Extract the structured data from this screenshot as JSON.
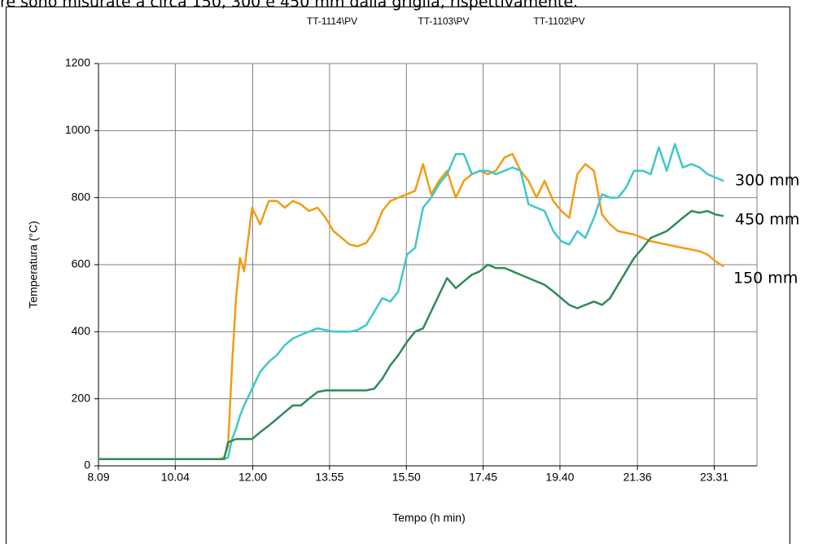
{
  "caption": "re sono misurate a circa 150, 300 e 450 mm dalla griglia, rispettivamente.",
  "chart_data": {
    "type": "line",
    "xlabel": "Tempo (h min)",
    "ylabel": "Temperatura (°C)",
    "x": [
      489,
      671,
      677,
      683,
      689,
      695,
      701,
      707,
      719,
      731,
      744,
      756,
      768,
      780,
      792,
      804,
      817,
      829,
      841,
      853,
      865,
      877,
      890,
      902,
      914,
      926,
      938,
      951,
      963,
      975,
      987,
      999,
      1011,
      1024,
      1036,
      1048,
      1060,
      1072,
      1084,
      1097,
      1109,
      1121,
      1133,
      1145,
      1157,
      1170,
      1182,
      1194,
      1206,
      1218,
      1231,
      1243,
      1255,
      1267,
      1279,
      1291,
      1304,
      1316,
      1328,
      1340,
      1352,
      1364,
      1377,
      1389,
      1401,
      1413,
      1425
    ],
    "xlim": [
      489,
      1475
    ],
    "xticks": [
      {
        "value": 489,
        "label": "8.09"
      },
      {
        "value": 604,
        "label": "10.04"
      },
      {
        "value": 720,
        "label": "12.00"
      },
      {
        "value": 835,
        "label": "13.55"
      },
      {
        "value": 950,
        "label": "15.50"
      },
      {
        "value": 1065,
        "label": "17.45"
      },
      {
        "value": 1180,
        "label": "19.40"
      },
      {
        "value": 1296,
        "label": "21.36"
      },
      {
        "value": 1411,
        "label": "23.31"
      }
    ],
    "ylim": [
      0,
      1200
    ],
    "yticks": [
      0,
      200,
      400,
      600,
      800,
      1000,
      1200
    ],
    "grid": true,
    "series": [
      {
        "name": "TT-1114\\PV",
        "color": "#f59b12",
        "values": [
          20,
          20,
          25,
          60,
          300,
          500,
          620,
          580,
          770,
          720,
          790,
          790,
          770,
          790,
          780,
          760,
          770,
          740,
          700,
          680,
          660,
          655,
          665,
          700,
          760,
          790,
          800,
          810,
          820,
          900,
          810,
          850,
          880,
          800,
          850,
          870,
          880,
          870,
          880,
          920,
          930,
          880,
          850,
          800,
          850,
          790,
          760,
          740,
          870,
          900,
          880,
          750,
          720,
          700,
          695,
          690,
          680,
          670,
          665,
          660,
          655,
          650,
          645,
          640,
          630,
          610,
          595
        ]
      },
      {
        "name": "TT-1103\\PV",
        "color": "#3ec8c8",
        "values": [
          20,
          20,
          20,
          25,
          80,
          110,
          150,
          180,
          230,
          280,
          310,
          330,
          360,
          380,
          390,
          400,
          410,
          405,
          400,
          400,
          400,
          405,
          420,
          460,
          500,
          490,
          520,
          630,
          650,
          770,
          800,
          840,
          870,
          930,
          930,
          870,
          880,
          880,
          870,
          880,
          890,
          880,
          780,
          770,
          760,
          700,
          670,
          660,
          700,
          680,
          740,
          810,
          800,
          800,
          830,
          880,
          880,
          870,
          950,
          880,
          960,
          890,
          900,
          890,
          870,
          860,
          850
        ]
      },
      {
        "name": "TT-1102\\PV",
        "color": "#2e8b57",
        "values": [
          20,
          20,
          20,
          70,
          75,
          80,
          80,
          80,
          80,
          100,
          120,
          140,
          160,
          180,
          180,
          200,
          220,
          225,
          225,
          225,
          225,
          225,
          225,
          230,
          260,
          300,
          330,
          370,
          400,
          410,
          460,
          510,
          560,
          530,
          550,
          570,
          580,
          600,
          590,
          590,
          580,
          570,
          560,
          550,
          540,
          520,
          500,
          480,
          470,
          480,
          490,
          480,
          500,
          540,
          580,
          620,
          650,
          680,
          690,
          700,
          720,
          740,
          760,
          755,
          760,
          750,
          745
        ]
      }
    ],
    "annotations": [
      "300 mm",
      "450 mm",
      "150 mm"
    ]
  }
}
